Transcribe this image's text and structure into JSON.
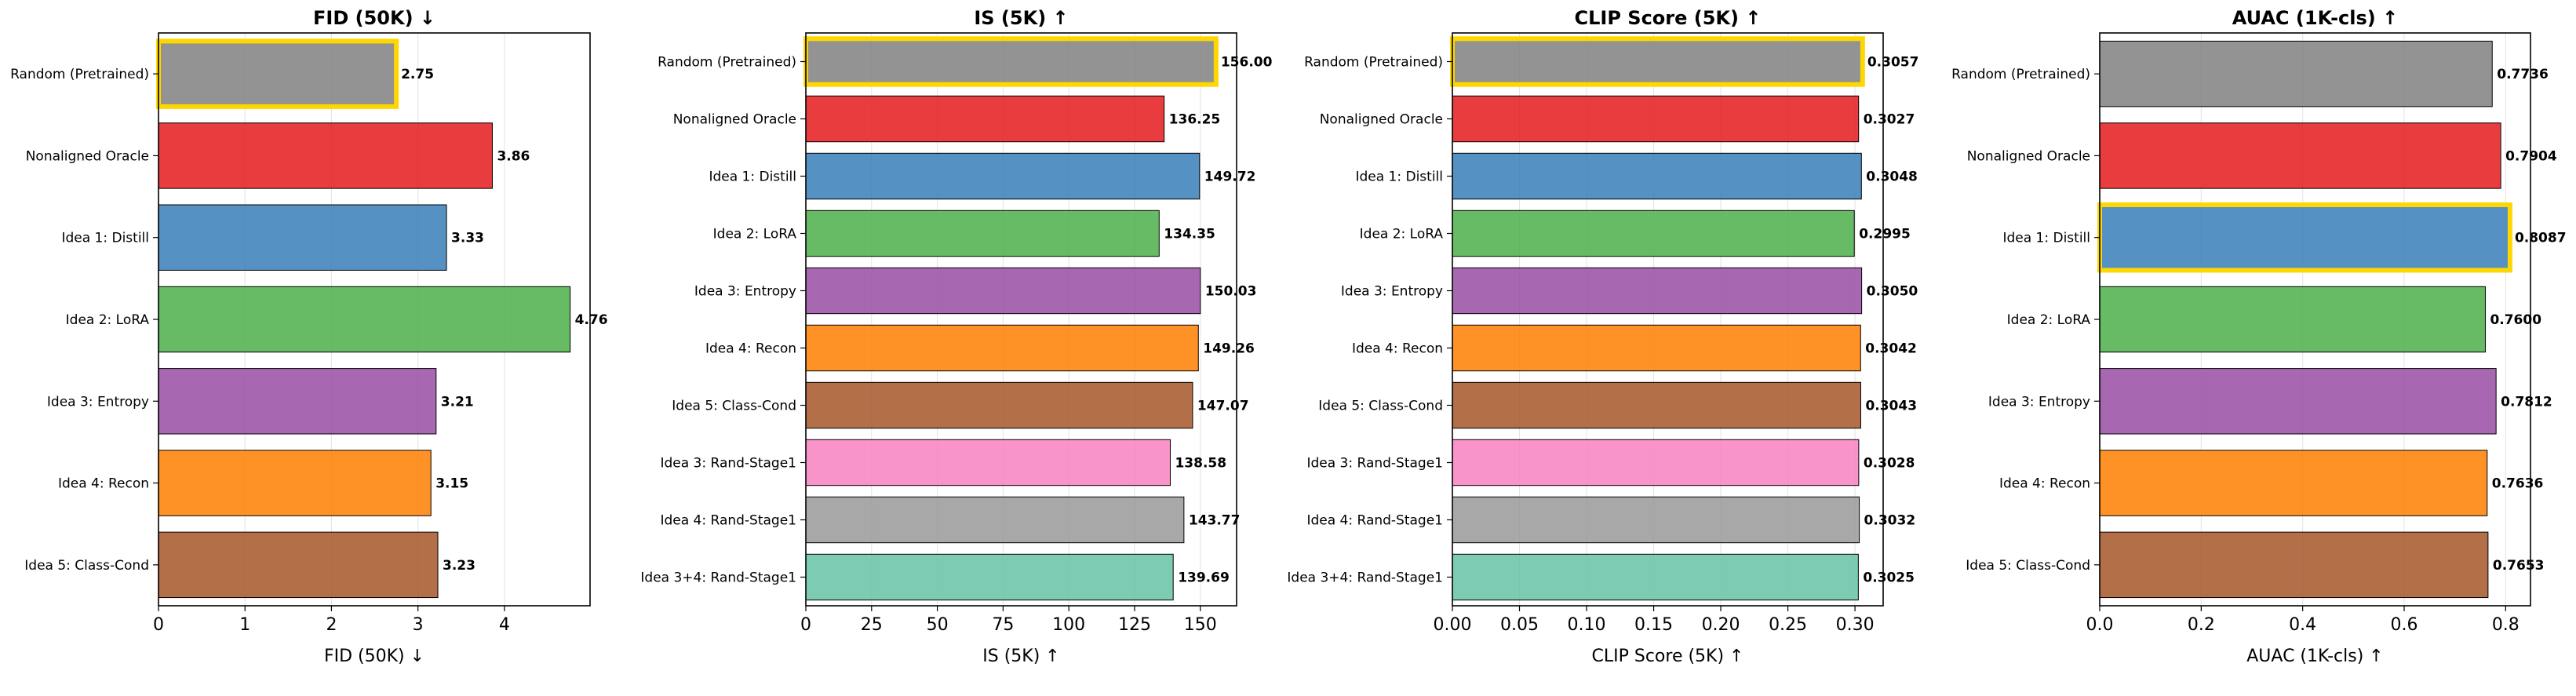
{
  "colors": {
    "red": "#e41a1c",
    "blue": "#377eb8",
    "green": "#4daf4a",
    "purple": "#984ea3",
    "orange": "#ff7f00",
    "brown": "#a65628",
    "pink": "#f781bf",
    "gray": "#999999",
    "teal": "#66c2a5",
    "baseline": "#808080",
    "highlight": "#ffd700"
  },
  "chart_data": [
    {
      "type": "bar",
      "orientation": "horizontal",
      "title": "FID (50K) ↓",
      "xlabel": "FID (50K) ↓",
      "xlim": [
        0,
        4.99
      ],
      "xticks": [
        0,
        1,
        2,
        3,
        4
      ],
      "tick_labels": [
        "0",
        "1",
        "2",
        "3",
        "4"
      ],
      "categories": [
        "Random (Pretrained)",
        "Nonaligned Oracle",
        "Idea 1: Distill",
        "Idea 2: LoRA",
        "Idea 3: Entropy",
        "Idea 4: Recon",
        "Idea 5: Class-Cond"
      ],
      "values": [
        2.75,
        3.86,
        3.33,
        4.76,
        3.21,
        3.15,
        3.23
      ],
      "value_labels": [
        "2.75",
        "3.86",
        "3.33",
        "4.76",
        "3.21",
        "3.15",
        "3.23"
      ],
      "colors": [
        "baseline",
        "red",
        "blue",
        "green",
        "purple",
        "orange",
        "brown"
      ],
      "highlight_index": 0,
      "grid": "x"
    },
    {
      "type": "bar",
      "orientation": "horizontal",
      "title": "IS (5K) ↑",
      "xlabel": "IS (5K) ↑",
      "xlim": [
        0,
        163.8
      ],
      "xticks": [
        0,
        25,
        50,
        75,
        100,
        125,
        150
      ],
      "tick_labels": [
        "0",
        "25",
        "50",
        "75",
        "100",
        "125",
        "150"
      ],
      "categories": [
        "Random (Pretrained)",
        "Nonaligned Oracle",
        "Idea 1: Distill",
        "Idea 2: LoRA",
        "Idea 3: Entropy",
        "Idea 4: Recon",
        "Idea 5: Class-Cond",
        "Idea 3: Rand-Stage1",
        "Idea 4: Rand-Stage1",
        "Idea 3+4: Rand-Stage1"
      ],
      "values": [
        156.0,
        136.25,
        149.72,
        134.35,
        150.03,
        149.26,
        147.07,
        138.58,
        143.77,
        139.69
      ],
      "value_labels": [
        "156.00",
        "136.25",
        "149.72",
        "134.35",
        "150.03",
        "149.26",
        "147.07",
        "138.58",
        "143.77",
        "139.69"
      ],
      "colors": [
        "baseline",
        "red",
        "blue",
        "green",
        "purple",
        "orange",
        "brown",
        "pink",
        "gray",
        "teal"
      ],
      "highlight_index": 0,
      "grid": "x"
    },
    {
      "type": "bar",
      "orientation": "horizontal",
      "title": "CLIP Score (5K) ↑",
      "xlabel": "CLIP Score (5K) ↑",
      "xlim": [
        0,
        0.321
      ],
      "xticks": [
        0,
        0.05,
        0.1,
        0.15,
        0.2,
        0.25,
        0.3
      ],
      "tick_labels": [
        "0.00",
        "0.05",
        "0.10",
        "0.15",
        "0.20",
        "0.25",
        "0.30"
      ],
      "categories": [
        "Random (Pretrained)",
        "Nonaligned Oracle",
        "Idea 1: Distill",
        "Idea 2: LoRA",
        "Idea 3: Entropy",
        "Idea 4: Recon",
        "Idea 5: Class-Cond",
        "Idea 3: Rand-Stage1",
        "Idea 4: Rand-Stage1",
        "Idea 3+4: Rand-Stage1"
      ],
      "values": [
        0.3057,
        0.3027,
        0.3048,
        0.2995,
        0.305,
        0.3042,
        0.3043,
        0.3028,
        0.3032,
        0.3025
      ],
      "value_labels": [
        "0.3057",
        "0.3027",
        "0.3048",
        "0.2995",
        "0.3050",
        "0.3042",
        "0.3043",
        "0.3028",
        "0.3032",
        "0.3025"
      ],
      "colors": [
        "baseline",
        "red",
        "blue",
        "green",
        "purple",
        "orange",
        "brown",
        "pink",
        "gray",
        "teal"
      ],
      "highlight_index": 0,
      "grid": "x"
    },
    {
      "type": "bar",
      "orientation": "horizontal",
      "title": "AUAC (1K-cls) ↑",
      "xlabel": "AUAC (1K-cls) ↑",
      "xlim": [
        0,
        0.849
      ],
      "xticks": [
        0,
        0.2,
        0.4,
        0.6,
        0.8
      ],
      "tick_labels": [
        "0.0",
        "0.2",
        "0.4",
        "0.6",
        "0.8"
      ],
      "categories": [
        "Random (Pretrained)",
        "Nonaligned Oracle",
        "Idea 1: Distill",
        "Idea 2: LoRA",
        "Idea 3: Entropy",
        "Idea 4: Recon",
        "Idea 5: Class-Cond"
      ],
      "values": [
        0.7736,
        0.7904,
        0.8087,
        0.76,
        0.7812,
        0.7636,
        0.7653
      ],
      "value_labels": [
        "0.7736",
        "0.7904",
        "0.8087",
        "0.7600",
        "0.7812",
        "0.7636",
        "0.7653"
      ],
      "colors": [
        "baseline",
        "red",
        "blue",
        "green",
        "purple",
        "orange",
        "brown"
      ],
      "highlight_index": 2,
      "grid": "x"
    }
  ]
}
